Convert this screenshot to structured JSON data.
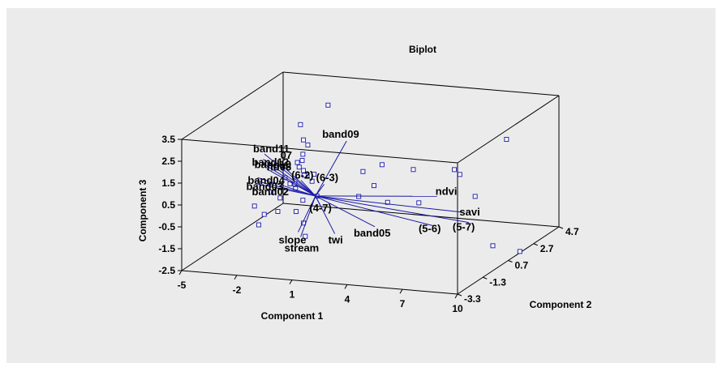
{
  "chart_data": {
    "type": "scatter",
    "title": "Biplot",
    "xlabel": "Component 1",
    "ylabel": "Component 2",
    "zlabel": "Component 3",
    "x_ticks": [
      "-5",
      "-2",
      "1",
      "4",
      "7",
      "10"
    ],
    "y_ticks": [
      "-3.3",
      "-1.3",
      "0.7",
      "2.7",
      "4.7"
    ],
    "z_ticks": [
      "-2.5",
      "-1.5",
      "-0.5",
      "0.5",
      "1.5",
      "2.5",
      "3.5"
    ],
    "xlim": [
      -5,
      10
    ],
    "ylim": [
      -3.3,
      4.7
    ],
    "zlim": [
      -2.5,
      3.5
    ],
    "colors": {
      "vectors": "#1a1aa6",
      "points": "#2b2bb0",
      "panel": "#ebebeb"
    },
    "vectors": [
      {
        "name": "band09",
        "end": [
          1.0,
          1.0,
          2.2
        ]
      },
      {
        "name": "ndvi",
        "end": [
          6.2,
          0.6,
          0.2
        ]
      },
      {
        "name": "savi",
        "end": [
          7.8,
          0.3,
          -0.3
        ]
      },
      {
        "name": "(5-7)",
        "end": [
          8.2,
          0.2,
          -0.7
        ]
      },
      {
        "name": "(5-6)",
        "end": [
          6.4,
          0.0,
          -0.9
        ]
      },
      {
        "name": "band05",
        "end": [
          3.5,
          -0.4,
          -1.0
        ]
      },
      {
        "name": "twi",
        "end": [
          1.6,
          -0.8,
          -1.3
        ]
      },
      {
        "name": "slope",
        "end": [
          -0.6,
          -0.5,
          -1.5
        ]
      },
      {
        "name": "stream",
        "end": [
          -0.6,
          -0.3,
          -1.8
        ]
      },
      {
        "name": "(6-3)",
        "end": [
          0.2,
          0.4,
          0.4
        ]
      },
      {
        "name": "(6-2)",
        "end": [
          -1.2,
          0.6,
          0.4
        ]
      },
      {
        "name": "(4-7)",
        "end": [
          0.7,
          -0.6,
          -0.2
        ]
      },
      {
        "name": "band11",
        "end": [
          -3.6,
          1.2,
          1.2
        ]
      },
      {
        "name": "band07",
        "end": [
          -2.6,
          1.0,
          0.9
        ]
      },
      {
        "name": "band12",
        "end": [
          -3.6,
          1.1,
          1.0
        ]
      },
      {
        "name": "band10",
        "end": [
          -3.5,
          0.9,
          0.9
        ]
      },
      {
        "name": "band06",
        "end": [
          -3.2,
          0.8,
          0.7
        ]
      },
      {
        "name": "band04",
        "end": [
          -3.5,
          0.5,
          0.4
        ]
      },
      {
        "name": "band03",
        "end": [
          -3.6,
          0.4,
          0.3
        ]
      },
      {
        "name": "band02",
        "end": [
          -3.4,
          0.3,
          0.2
        ]
      }
    ],
    "labels": [
      {
        "text": "band09",
        "vector": "band09"
      },
      {
        "text": "ndvi",
        "vector": "ndvi"
      },
      {
        "text": "savi",
        "vector": "savi"
      },
      {
        "text": "(5-7)",
        "vector": "(5-7)"
      },
      {
        "text": "(5-6)",
        "vector": "(5-6)"
      },
      {
        "text": "band05",
        "vector": "band05"
      },
      {
        "text": "twi",
        "vector": "twi"
      },
      {
        "text": "slope",
        "vector": "slope"
      },
      {
        "text": "stream",
        "vector": "stream"
      },
      {
        "text": "(6-3)",
        "vector": "(6-3)"
      },
      {
        "text": "(6-2)",
        "vector": "(6-2)"
      },
      {
        "text": "(4-7)",
        "vector": "(4-7)"
      },
      {
        "text": "band11",
        "vector": "band11"
      },
      {
        "text": "07",
        "vector": "band07"
      },
      {
        "text": "band12",
        "vector": "band12"
      },
      {
        "text": "band10",
        "vector": "band10"
      },
      {
        "text": "nd06",
        "vector": "band06"
      },
      {
        "text": "band04",
        "vector": "band04"
      },
      {
        "text": "band03",
        "vector": "band03"
      },
      {
        "text": "band02",
        "vector": "band02"
      }
    ],
    "points": [
      [
        0.2,
        0.7,
        3.9
      ],
      [
        -1.3,
        0.7,
        2.9
      ],
      [
        -1.0,
        0.5,
        2.3
      ],
      [
        -0.9,
        0.7,
        2.0
      ],
      [
        -1.1,
        0.6,
        1.6
      ],
      [
        -1.0,
        0.4,
        1.4
      ],
      [
        -1.4,
        0.6,
        1.2
      ],
      [
        -1.3,
        0.6,
        1.0
      ],
      [
        -1.0,
        0.5,
        0.9
      ],
      [
        -0.8,
        0.5,
        0.7
      ],
      [
        -1.1,
        0.7,
        0.6
      ],
      [
        -2.0,
        0.5,
        0.5
      ],
      [
        -1.4,
        0.4,
        0.3
      ],
      [
        -0.6,
        0.6,
        0.4
      ],
      [
        -1.8,
        0.6,
        0.2
      ],
      [
        -1.5,
        0.6,
        0.0
      ],
      [
        -2.9,
        0.7,
        -0.3
      ],
      [
        -2.2,
        0.4,
        -0.4
      ],
      [
        -1.1,
        0.6,
        -0.5
      ],
      [
        -3.8,
        0.7,
        -1.0
      ],
      [
        -2.6,
        0.8,
        -1.2
      ],
      [
        -1.4,
        0.5,
        -1.0
      ],
      [
        -3.5,
        0.6,
        -1.8
      ],
      [
        -1.0,
        0.5,
        -1.5
      ],
      [
        -0.9,
        0.5,
        -2.1
      ],
      [
        -3.2,
        0.6,
        -1.3
      ],
      [
        3.0,
        0.9,
        1.3
      ],
      [
        4.7,
        0.9,
        1.2
      ],
      [
        7.0,
        0.8,
        1.4
      ],
      [
        7.3,
        0.8,
        1.2
      ],
      [
        2.7,
        0.7,
        0.4
      ],
      [
        3.3,
        0.9,
        -0.4
      ],
      [
        5.0,
        0.9,
        -0.3
      ],
      [
        8.2,
        0.7,
        0.3
      ],
      [
        9.7,
        1.0,
        2.9
      ],
      [
        9.3,
        0.5,
        -1.8
      ],
      [
        1.8,
        0.8,
        -0.2
      ],
      [
        -0.4,
        0.7,
        -0.3
      ],
      [
        -0.7,
        0.9,
        0.6
      ],
      [
        2.1,
        0.7,
        1.0
      ]
    ],
    "grid": false,
    "legend": "none"
  },
  "outside_point": "(10.7, 0.6, -2.0)"
}
